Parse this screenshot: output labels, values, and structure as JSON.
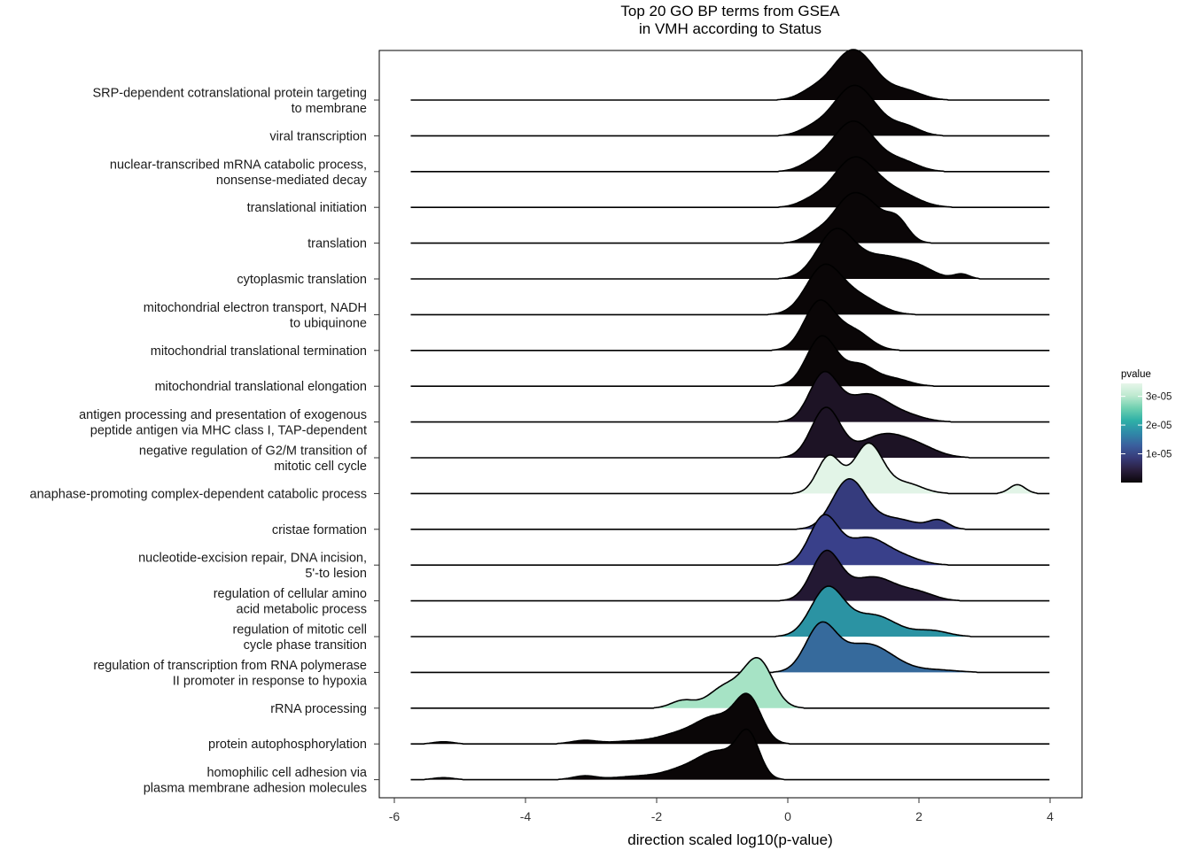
{
  "chart_data": {
    "type": "ridgeline",
    "title_lines": [
      "Top 20 GO BP terms from GSEA",
      "in VMH according to Status"
    ],
    "xlabel": "direction scaled log10(p-value)",
    "xlim": [
      -6.05,
      4.45
    ],
    "x_ticks": [
      -6,
      -4,
      -2,
      0,
      2,
      4
    ],
    "x_tick_labels": [
      "-6",
      "-4",
      "-2",
      "0",
      "2",
      "4"
    ],
    "x_range_baseline": [
      -5.75,
      4.0
    ],
    "legend": {
      "title": "pvalue",
      "position": "right",
      "ticks": [
        1e-05,
        2e-05,
        3e-05
      ],
      "tick_labels": [
        "1e-05",
        "2e-05",
        "3e-05"
      ],
      "range": [
        0,
        3.45e-05
      ],
      "colors": [
        "#0a0509",
        "#2a1f3e",
        "#383b79",
        "#3a5f9e",
        "#2f89a8",
        "#2eb0a7",
        "#6fd0b0",
        "#bde9cf",
        "#e6f6ea"
      ]
    },
    "terms": [
      {
        "label": [
          "SRP-dependent cotranslational protein targeting",
          "to membrane"
        ],
        "pvalue": 0,
        "fill": "#0a0607",
        "bumps": [
          [
            1.0,
            0.33,
            1.0
          ],
          [
            1.8,
            0.25,
            0.17
          ],
          [
            0.35,
            0.2,
            0.12
          ]
        ]
      },
      {
        "label": [
          "viral transcription"
        ],
        "pvalue": 0,
        "fill": "#0a0607",
        "bumps": [
          [
            1.02,
            0.33,
            1.0
          ],
          [
            1.8,
            0.22,
            0.17
          ],
          [
            0.35,
            0.2,
            0.1
          ]
        ]
      },
      {
        "label": [
          "nuclear-transcribed mRNA catabolic process,",
          "nonsense-mediated decay"
        ],
        "pvalue": 0,
        "fill": "#0a0607",
        "bumps": [
          [
            1.0,
            0.33,
            1.0
          ],
          [
            1.75,
            0.25,
            0.18
          ],
          [
            0.35,
            0.2,
            0.1
          ]
        ]
      },
      {
        "label": [
          "translational initiation"
        ],
        "pvalue": 0,
        "fill": "#0a0607",
        "bumps": [
          [
            1.02,
            0.33,
            1.0
          ],
          [
            1.7,
            0.3,
            0.25
          ],
          [
            0.35,
            0.2,
            0.1
          ]
        ]
      },
      {
        "label": [
          "translation"
        ],
        "pvalue": 0,
        "fill": "#0a0607",
        "bumps": [
          [
            1.0,
            0.3,
            1.0
          ],
          [
            1.65,
            0.18,
            0.48
          ],
          [
            1.3,
            0.15,
            0.15
          ],
          [
            0.4,
            0.18,
            0.12
          ]
        ]
      },
      {
        "label": [
          "cytoplasmic translation"
        ],
        "pvalue": 0,
        "fill": "#0a0607",
        "bumps": [
          [
            0.73,
            0.28,
            1.0
          ],
          [
            1.45,
            0.35,
            0.45
          ],
          [
            2.0,
            0.25,
            0.18
          ],
          [
            2.65,
            0.12,
            0.1
          ]
        ]
      },
      {
        "label": [
          "mitochondrial electron transport, NADH",
          "to ubiquinone"
        ],
        "pvalue": 0,
        "fill": "#0a0607",
        "bumps": [
          [
            0.55,
            0.27,
            1.0
          ],
          [
            1.1,
            0.3,
            0.35
          ]
        ]
      },
      {
        "label": [
          "mitochondrial translational termination"
        ],
        "pvalue": 0,
        "fill": "#0a0607",
        "bumps": [
          [
            0.48,
            0.23,
            1.0
          ],
          [
            1.0,
            0.25,
            0.4
          ]
        ]
      },
      {
        "label": [
          "mitochondrial translational elongation"
        ],
        "pvalue": 0,
        "fill": "#0a0607",
        "bumps": [
          [
            0.52,
            0.23,
            1.0
          ],
          [
            1.1,
            0.22,
            0.4
          ],
          [
            1.6,
            0.25,
            0.15
          ]
        ]
      },
      {
        "label": [
          "antigen processing and presentation of exogenous",
          "peptide antigen via MHC class I, TAP-dependent"
        ],
        "pvalue": 4e-06,
        "fill": "#1d1325",
        "bumps": [
          [
            0.55,
            0.22,
            1.0
          ],
          [
            1.2,
            0.3,
            0.55
          ],
          [
            1.75,
            0.3,
            0.15
          ]
        ]
      },
      {
        "label": [
          "negative regulation of G2/M transition of",
          "mitotic cell cycle"
        ],
        "pvalue": 4e-06,
        "fill": "#1d1325",
        "bumps": [
          [
            0.58,
            0.22,
            1.0
          ],
          [
            1.45,
            0.35,
            0.45
          ],
          [
            2.0,
            0.3,
            0.18
          ]
        ]
      },
      {
        "label": [
          "anaphase-promoting complex-dependent catabolic process"
        ],
        "pvalue": 3.4e-05,
        "fill": "#e2f4e7",
        "bumps": [
          [
            0.63,
            0.18,
            0.75
          ],
          [
            1.23,
            0.22,
            1.0
          ],
          [
            1.8,
            0.25,
            0.2
          ],
          [
            3.5,
            0.12,
            0.18
          ]
        ]
      },
      {
        "label": [
          "cristae formation"
        ],
        "pvalue": 1.8e-05,
        "fill": "#353b7d",
        "bumps": [
          [
            0.93,
            0.25,
            1.0
          ],
          [
            1.6,
            0.35,
            0.22
          ],
          [
            2.3,
            0.15,
            0.17
          ]
        ]
      },
      {
        "label": [
          "nucleotide-excision repair, DNA incision,",
          "5'-to lesion"
        ],
        "pvalue": 1.9e-05,
        "fill": "#39408a",
        "bumps": [
          [
            0.55,
            0.22,
            1.0
          ],
          [
            1.2,
            0.3,
            0.55
          ],
          [
            1.75,
            0.28,
            0.15
          ]
        ]
      },
      {
        "label": [
          "regulation of cellular amino",
          "acid metabolic process"
        ],
        "pvalue": 5e-06,
        "fill": "#231833",
        "bumps": [
          [
            0.58,
            0.22,
            1.0
          ],
          [
            1.3,
            0.35,
            0.5
          ],
          [
            2.0,
            0.25,
            0.15
          ]
        ]
      },
      {
        "label": [
          "regulation of mitotic cell",
          "cycle phase transition"
        ],
        "pvalue": 2.5e-05,
        "fill": "#2b93a3",
        "bumps": [
          [
            0.6,
            0.25,
            1.0
          ],
          [
            1.3,
            0.35,
            0.45
          ],
          [
            2.2,
            0.25,
            0.12
          ]
        ]
      },
      {
        "label": [
          "regulation of transcription from RNA polymerase",
          "II promoter in response to hypoxia"
        ],
        "pvalue": 2.2e-05,
        "fill": "#366a9c",
        "bumps": [
          [
            0.5,
            0.23,
            1.0
          ],
          [
            1.2,
            0.4,
            0.65
          ],
          [
            2.3,
            0.3,
            0.05
          ]
        ]
      },
      {
        "label": [
          "rRNA processing"
        ],
        "pvalue": 3.1e-05,
        "fill": "#a6e3c5",
        "bumps": [
          [
            -0.45,
            0.22,
            1.0
          ],
          [
            -0.95,
            0.25,
            0.45
          ],
          [
            -1.6,
            0.18,
            0.16
          ]
        ]
      },
      {
        "label": [
          "protein autophosphorylation"
        ],
        "pvalue": 0,
        "fill": "#0a0607",
        "bumps": [
          [
            -0.6,
            0.2,
            1.0
          ],
          [
            -1.1,
            0.3,
            0.6
          ],
          [
            -1.7,
            0.3,
            0.2
          ],
          [
            -2.4,
            0.3,
            0.06
          ],
          [
            -3.1,
            0.2,
            0.08
          ],
          [
            -5.25,
            0.15,
            0.05
          ]
        ]
      },
      {
        "label": [
          "homophilic cell adhesion via",
          "plasma membrane adhesion molecules"
        ],
        "pvalue": 0,
        "fill": "#0a0607",
        "bumps": []
      }
    ]
  }
}
